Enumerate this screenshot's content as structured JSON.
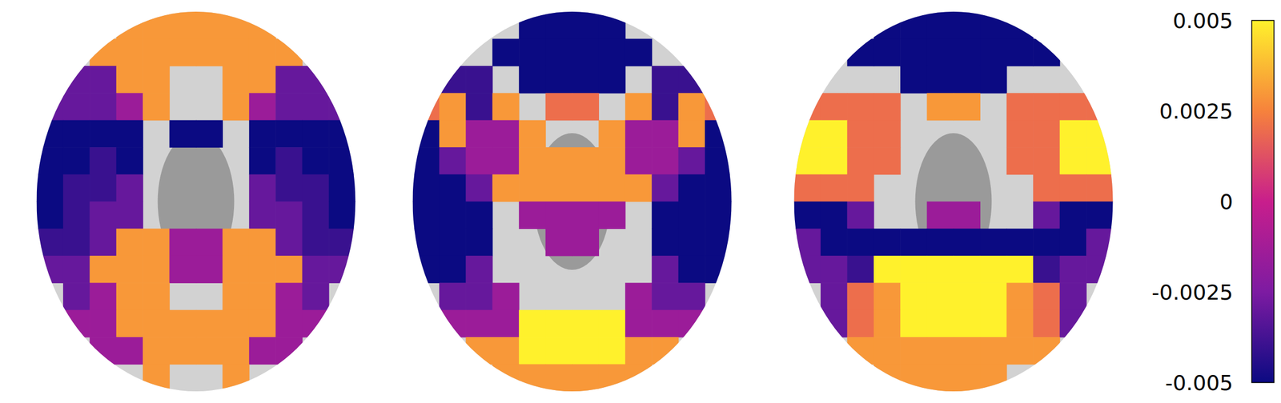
{
  "chart_data": {
    "type": "heatmap",
    "cells": [
      [
        [
          null,
          null,
          null,
          0.003,
          0.003,
          0.003,
          0.003,
          0.003,
          0.003,
          null,
          null,
          null
        ],
        [
          null,
          null,
          0.003,
          0.003,
          0.003,
          0.003,
          0.003,
          0.003,
          0.003,
          0.003,
          null,
          null
        ],
        [
          null,
          -0.003,
          -0.003,
          0.003,
          0.003,
          null,
          null,
          0.003,
          0.003,
          -0.003,
          -0.003,
          null
        ],
        [
          -0.003,
          -0.003,
          -0.003,
          -0.0015,
          0.003,
          null,
          null,
          0.003,
          -0.0015,
          -0.003,
          -0.003,
          -0.003
        ],
        [
          -0.005,
          -0.005,
          -0.005,
          -0.005,
          null,
          -0.005,
          -0.005,
          null,
          -0.005,
          -0.005,
          -0.005,
          -0.005
        ],
        [
          -0.005,
          -0.005,
          -0.004,
          -0.005,
          null,
          null,
          null,
          null,
          -0.005,
          -0.004,
          -0.005,
          -0.005
        ],
        [
          -0.005,
          -0.004,
          -0.004,
          -0.003,
          null,
          null,
          null,
          null,
          -0.003,
          -0.004,
          -0.004,
          -0.005
        ],
        [
          -0.005,
          -0.004,
          -0.003,
          -0.003,
          null,
          null,
          null,
          null,
          -0.003,
          -0.003,
          -0.004,
          -0.005
        ],
        [
          -0.004,
          -0.004,
          -0.003,
          0.003,
          0.003,
          -0.0015,
          -0.0015,
          0.003,
          0.003,
          -0.003,
          -0.004,
          -0.004
        ],
        [
          -0.003,
          -0.003,
          0.003,
          0.003,
          0.003,
          -0.0015,
          -0.0015,
          0.003,
          0.003,
          0.003,
          -0.003,
          -0.003
        ],
        [
          null,
          -0.003,
          -0.0015,
          0.003,
          0.003,
          null,
          null,
          0.003,
          0.003,
          -0.0015,
          -0.003,
          null
        ],
        [
          null,
          -0.0015,
          -0.0015,
          0.003,
          0.003,
          0.003,
          0.003,
          0.003,
          0.003,
          -0.0015,
          -0.0015,
          null
        ],
        [
          null,
          null,
          -0.0015,
          -0.0015,
          0.003,
          0.003,
          0.003,
          0.003,
          -0.0015,
          -0.0015,
          null,
          null
        ],
        [
          null,
          null,
          null,
          null,
          0.003,
          null,
          null,
          0.003,
          null,
          null,
          null,
          null
        ]
      ],
      [
        [
          null,
          null,
          null,
          null,
          -0.005,
          -0.005,
          -0.005,
          -0.005,
          null,
          null,
          null,
          null
        ],
        [
          null,
          null,
          null,
          -0.005,
          -0.005,
          -0.005,
          -0.005,
          -0.005,
          -0.005,
          null,
          null,
          null
        ],
        [
          null,
          -0.004,
          -0.004,
          null,
          -0.005,
          -0.005,
          -0.005,
          -0.005,
          null,
          -0.004,
          -0.004,
          null
        ],
        [
          0.002,
          0.003,
          -0.004,
          0.003,
          null,
          0.002,
          0.002,
          null,
          0.003,
          -0.004,
          0.003,
          0.002
        ],
        [
          -0.005,
          0.003,
          -0.0015,
          -0.0015,
          0.003,
          null,
          null,
          0.003,
          -0.0015,
          -0.0015,
          0.003,
          -0.005
        ],
        [
          -0.005,
          -0.003,
          -0.0015,
          -0.0015,
          0.003,
          0.003,
          0.003,
          0.003,
          -0.0015,
          -0.0015,
          -0.003,
          -0.005
        ],
        [
          -0.005,
          -0.005,
          -0.003,
          0.003,
          0.003,
          0.003,
          0.003,
          0.003,
          0.003,
          -0.003,
          -0.005,
          -0.005
        ],
        [
          -0.005,
          -0.005,
          -0.005,
          null,
          -0.0015,
          -0.0015,
          -0.0015,
          -0.0015,
          null,
          -0.005,
          -0.005,
          -0.005
        ],
        [
          -0.005,
          -0.005,
          -0.005,
          null,
          null,
          -0.0015,
          -0.0015,
          null,
          null,
          -0.005,
          -0.005,
          -0.005
        ],
        [
          -0.005,
          -0.005,
          -0.003,
          null,
          null,
          null,
          null,
          null,
          null,
          -0.003,
          -0.005,
          -0.005
        ],
        [
          null,
          -0.003,
          -0.003,
          -0.0015,
          null,
          null,
          null,
          null,
          -0.0015,
          -0.003,
          -0.003,
          null
        ],
        [
          null,
          -0.0015,
          -0.0015,
          -0.0015,
          0.005,
          0.005,
          0.005,
          0.005,
          -0.0015,
          -0.0015,
          -0.0015,
          null
        ],
        [
          null,
          null,
          0.003,
          0.003,
          0.005,
          0.005,
          0.005,
          0.005,
          0.003,
          0.003,
          null,
          null
        ],
        [
          null,
          null,
          null,
          0.003,
          0.003,
          0.003,
          0.003,
          0.003,
          0.003,
          null,
          null,
          null
        ]
      ],
      [
        [
          null,
          null,
          null,
          -0.005,
          -0.005,
          -0.005,
          -0.005,
          -0.005,
          -0.005,
          null,
          null,
          null
        ],
        [
          null,
          null,
          -0.005,
          -0.005,
          -0.005,
          -0.005,
          -0.005,
          -0.005,
          -0.005,
          -0.005,
          null,
          null
        ],
        [
          null,
          null,
          null,
          null,
          -0.005,
          -0.005,
          -0.005,
          -0.005,
          null,
          null,
          null,
          null
        ],
        [
          0.002,
          0.002,
          0.002,
          0.002,
          null,
          0.003,
          0.003,
          null,
          0.002,
          0.002,
          0.002,
          0.002
        ],
        [
          0.005,
          0.005,
          0.002,
          0.002,
          null,
          null,
          null,
          null,
          0.002,
          0.002,
          0.005,
          0.005
        ],
        [
          0.005,
          0.005,
          0.002,
          0.002,
          null,
          null,
          null,
          null,
          0.002,
          0.002,
          0.005,
          0.005
        ],
        [
          0.002,
          0.002,
          0.002,
          null,
          null,
          null,
          null,
          null,
          null,
          0.002,
          0.002,
          0.002
        ],
        [
          -0.005,
          -0.005,
          -0.003,
          null,
          null,
          -0.0015,
          -0.0015,
          null,
          null,
          -0.003,
          -0.005,
          -0.005
        ],
        [
          -0.003,
          -0.005,
          -0.005,
          -0.005,
          -0.005,
          -0.005,
          -0.005,
          -0.005,
          -0.005,
          -0.005,
          -0.005,
          -0.003
        ],
        [
          -0.003,
          -0.003,
          -0.004,
          0.005,
          0.005,
          0.005,
          0.005,
          0.005,
          0.005,
          -0.004,
          -0.003,
          -0.003
        ],
        [
          null,
          -0.003,
          0.002,
          0.003,
          0.005,
          0.005,
          0.005,
          0.005,
          0.003,
          0.002,
          -0.003,
          null
        ],
        [
          null,
          -0.003,
          0.002,
          0.003,
          0.005,
          0.005,
          0.005,
          0.005,
          0.003,
          0.002,
          -0.003,
          null
        ],
        [
          null,
          null,
          0.003,
          0.003,
          0.003,
          0.003,
          0.003,
          0.003,
          0.003,
          0.003,
          null,
          null
        ],
        [
          null,
          null,
          null,
          0.003,
          0.003,
          0.003,
          0.003,
          0.003,
          null,
          null,
          null,
          null
        ]
      ]
    ],
    "colorbar": {
      "range": [
        -0.005,
        0.005
      ],
      "ticks": [
        0.005,
        0.0025,
        0,
        -0.0025,
        -0.005
      ]
    }
  }
}
